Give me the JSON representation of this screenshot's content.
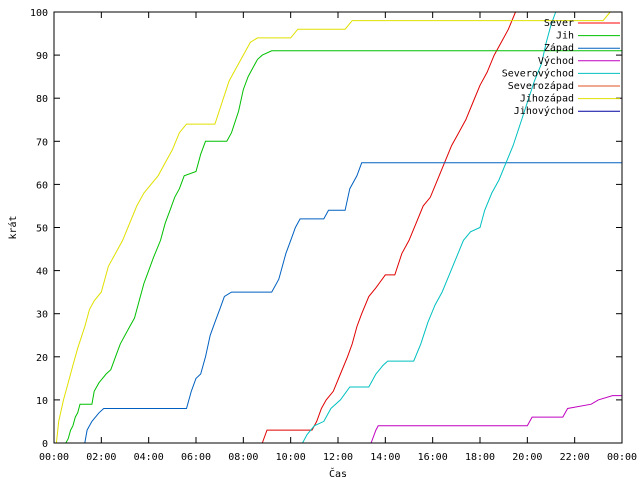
{
  "chart_data": {
    "type": "line",
    "title": "",
    "xlabel": "Čas",
    "ylabel": "krát",
    "xlim": [
      0,
      24
    ],
    "ylim": [
      0,
      100
    ],
    "x_ticks": [
      {
        "value": 0,
        "label": "00:00"
      },
      {
        "value": 2,
        "label": "02:00"
      },
      {
        "value": 4,
        "label": "04:00"
      },
      {
        "value": 6,
        "label": "06:00"
      },
      {
        "value": 8,
        "label": "08:00"
      },
      {
        "value": 10,
        "label": "10:00"
      },
      {
        "value": 12,
        "label": "12:00"
      },
      {
        "value": 14,
        "label": "14:00"
      },
      {
        "value": 16,
        "label": "16:00"
      },
      {
        "value": 18,
        "label": "18:00"
      },
      {
        "value": 20,
        "label": "20:00"
      },
      {
        "value": 22,
        "label": "22:00"
      },
      {
        "value": 24,
        "label": "00:00"
      }
    ],
    "y_ticks": [
      0,
      10,
      20,
      30,
      40,
      50,
      60,
      70,
      80,
      90,
      100
    ],
    "grid": false,
    "legend": "top-right",
    "series": [
      {
        "name": "Sever",
        "color": "#ff0000",
        "points": []
      },
      {
        "name": "Jih",
        "color": "#00c000",
        "points": [
          [
            0.5,
            0
          ],
          [
            0.6,
            1
          ],
          [
            0.7,
            3
          ],
          [
            0.8,
            4
          ],
          [
            0.9,
            6
          ],
          [
            1.0,
            7
          ],
          [
            1.1,
            9
          ],
          [
            1.6,
            9
          ],
          [
            1.7,
            12
          ],
          [
            1.9,
            14
          ],
          [
            2.2,
            16
          ],
          [
            2.4,
            17
          ],
          [
            2.6,
            20
          ],
          [
            2.8,
            23
          ],
          [
            3.0,
            25
          ],
          [
            3.2,
            27
          ],
          [
            3.4,
            29
          ],
          [
            3.6,
            33
          ],
          [
            3.8,
            37
          ],
          [
            4.0,
            40
          ],
          [
            4.2,
            43
          ],
          [
            4.5,
            47
          ],
          [
            4.7,
            51
          ],
          [
            4.9,
            54
          ],
          [
            5.1,
            57
          ],
          [
            5.3,
            59
          ],
          [
            5.5,
            62
          ],
          [
            6.0,
            63
          ],
          [
            6.2,
            67
          ],
          [
            6.4,
            70
          ],
          [
            7.3,
            70
          ],
          [
            7.5,
            72
          ],
          [
            7.8,
            77
          ],
          [
            8.0,
            82
          ],
          [
            8.2,
            85
          ],
          [
            8.4,
            87
          ],
          [
            8.6,
            89
          ],
          [
            8.8,
            90
          ],
          [
            9.2,
            91
          ],
          [
            24,
            91
          ]
        ]
      },
      {
        "name": "Západ",
        "color": "#0060c0",
        "points": [
          [
            1.3,
            0
          ],
          [
            1.4,
            3
          ],
          [
            1.6,
            5
          ],
          [
            1.9,
            7
          ],
          [
            2.1,
            8
          ],
          [
            5.6,
            8
          ],
          [
            5.8,
            12
          ],
          [
            6.0,
            15
          ],
          [
            6.2,
            16
          ],
          [
            6.4,
            20
          ],
          [
            6.6,
            25
          ],
          [
            6.8,
            28
          ],
          [
            7.0,
            31
          ],
          [
            7.2,
            34
          ],
          [
            7.5,
            35
          ],
          [
            9.2,
            35
          ],
          [
            9.5,
            38
          ],
          [
            9.8,
            44
          ],
          [
            10.0,
            47
          ],
          [
            10.2,
            50
          ],
          [
            10.4,
            52
          ],
          [
            11.4,
            52
          ],
          [
            11.6,
            54
          ],
          [
            12.3,
            54
          ],
          [
            12.5,
            59
          ],
          [
            12.8,
            62
          ],
          [
            13.0,
            65
          ],
          [
            24,
            65
          ]
        ]
      },
      {
        "name": "Východ",
        "color": "#c000c0",
        "points": [
          [
            13.4,
            0
          ],
          [
            13.6,
            3
          ],
          [
            13.7,
            4
          ],
          [
            20.0,
            4
          ],
          [
            20.2,
            6
          ],
          [
            21.5,
            6
          ],
          [
            21.7,
            8
          ],
          [
            22.7,
            9
          ],
          [
            23.0,
            10
          ],
          [
            23.6,
            11
          ],
          [
            24,
            11
          ]
        ]
      },
      {
        "name": "Severovýchod",
        "color": "#00c0c0",
        "points": [
          [
            10.5,
            0
          ],
          [
            10.7,
            2
          ],
          [
            11.0,
            4
          ],
          [
            11.4,
            5
          ],
          [
            11.7,
            8
          ],
          [
            12.1,
            10
          ],
          [
            12.5,
            13
          ],
          [
            13.3,
            13
          ],
          [
            13.6,
            16
          ],
          [
            13.9,
            18
          ],
          [
            14.1,
            19
          ],
          [
            15.2,
            19
          ],
          [
            15.5,
            23
          ],
          [
            15.8,
            28
          ],
          [
            16.1,
            32
          ],
          [
            16.4,
            35
          ],
          [
            16.7,
            39
          ],
          [
            17.0,
            43
          ],
          [
            17.3,
            47
          ],
          [
            17.6,
            49
          ],
          [
            18.0,
            50
          ],
          [
            18.2,
            54
          ],
          [
            18.5,
            58
          ],
          [
            18.8,
            61
          ],
          [
            19.1,
            65
          ],
          [
            19.4,
            69
          ],
          [
            19.7,
            74
          ],
          [
            20.0,
            79
          ],
          [
            20.3,
            84
          ],
          [
            20.6,
            88
          ],
          [
            20.8,
            93
          ],
          [
            21.0,
            97
          ],
          [
            21.2,
            100
          ]
        ]
      },
      {
        "name": "Severozápad",
        "color": "#e05020",
        "points": []
      },
      {
        "name": "Jihozápad",
        "color": "#e0e000",
        "points": [
          [
            0.1,
            0
          ],
          [
            0.2,
            5
          ],
          [
            0.4,
            10
          ],
          [
            0.6,
            14
          ],
          [
            0.8,
            18
          ],
          [
            1.0,
            22
          ],
          [
            1.3,
            27
          ],
          [
            1.5,
            31
          ],
          [
            1.7,
            33
          ],
          [
            2.0,
            35
          ],
          [
            2.3,
            41
          ],
          [
            2.6,
            44
          ],
          [
            2.9,
            47
          ],
          [
            3.2,
            51
          ],
          [
            3.5,
            55
          ],
          [
            3.8,
            58
          ],
          [
            4.1,
            60
          ],
          [
            4.4,
            62
          ],
          [
            4.7,
            65
          ],
          [
            5.0,
            68
          ],
          [
            5.3,
            72
          ],
          [
            5.6,
            74
          ],
          [
            6.8,
            74
          ],
          [
            7.1,
            79
          ],
          [
            7.4,
            84
          ],
          [
            7.7,
            87
          ],
          [
            8.0,
            90
          ],
          [
            8.3,
            93
          ],
          [
            8.6,
            94
          ],
          [
            10.0,
            94
          ],
          [
            10.3,
            96
          ],
          [
            12.3,
            96
          ],
          [
            12.6,
            98
          ],
          [
            23.2,
            98
          ],
          [
            23.5,
            100
          ]
        ]
      },
      {
        "name": "Jihovýchod",
        "color": "#0000a0",
        "points": []
      }
    ],
    "red_series_points": [
      [
        8.8,
        0
      ],
      [
        9.0,
        3
      ],
      [
        10.9,
        3
      ],
      [
        11.1,
        5
      ],
      [
        11.3,
        8
      ],
      [
        11.5,
        10
      ],
      [
        11.8,
        12
      ],
      [
        12.1,
        16
      ],
      [
        12.4,
        20
      ],
      [
        12.6,
        23
      ],
      [
        12.8,
        27
      ],
      [
        13.0,
        30
      ],
      [
        13.3,
        34
      ],
      [
        13.6,
        36
      ],
      [
        14.0,
        39
      ],
      [
        14.4,
        39
      ],
      [
        14.7,
        44
      ],
      [
        15.0,
        47
      ],
      [
        15.3,
        51
      ],
      [
        15.6,
        55
      ],
      [
        15.9,
        57
      ],
      [
        16.2,
        61
      ],
      [
        16.5,
        65
      ],
      [
        16.8,
        69
      ],
      [
        17.1,
        72
      ],
      [
        17.4,
        75
      ],
      [
        17.7,
        79
      ],
      [
        18.0,
        83
      ],
      [
        18.3,
        86
      ],
      [
        18.6,
        90
      ],
      [
        18.9,
        93
      ],
      [
        19.2,
        96
      ],
      [
        19.5,
        100
      ]
    ]
  }
}
